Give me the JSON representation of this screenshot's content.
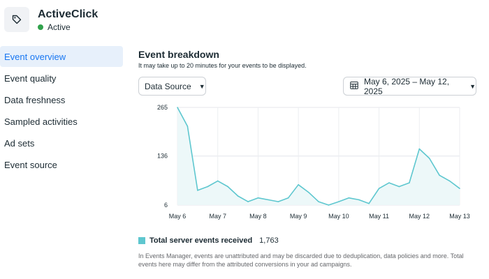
{
  "app": {
    "title": "ActiveClick",
    "status": "Active",
    "icon": "tag-icon",
    "status_color": "#31a24c"
  },
  "sidebar": {
    "items": [
      {
        "label": "Event overview",
        "active": true
      },
      {
        "label": "Event quality"
      },
      {
        "label": "Data freshness"
      },
      {
        "label": "Sampled activities"
      },
      {
        "label": "Ad sets"
      },
      {
        "label": "Event source"
      }
    ]
  },
  "main": {
    "title": "Event breakdown",
    "subtitle": "It may take up to 20 minutes for your events to be displayed.",
    "source_button": "Data Source",
    "date_range": "May 6, 2025 – May 12, 2025",
    "legend_label": "Total server events received",
    "legend_total": "1,763",
    "footnote": "In Events Manager, events are unattributed and may be discarded due to deduplication, data policies and more. Total events here may differ from the attributed conversions in your ad campaigns."
  },
  "chart_data": {
    "type": "area",
    "title": "",
    "xlabel": "",
    "ylabel": "",
    "color": "#5ec7cf",
    "fill": "#edf8f9",
    "grid": true,
    "ylim": [
      6,
      265
    ],
    "yticks": [
      265,
      136,
      6
    ],
    "xticks": [
      "May 6",
      "May 7",
      "May 8",
      "May 9",
      "May 10",
      "May 11",
      "May 12",
      "May 13"
    ],
    "x": [
      0,
      0.25,
      0.5,
      0.75,
      1,
      1.25,
      1.5,
      1.75,
      2,
      2.25,
      2.5,
      2.75,
      3,
      3.25,
      3.5,
      3.75,
      4,
      4.25,
      4.5,
      4.75,
      5,
      5.25,
      5.5,
      5.75,
      6,
      6.25,
      6.5,
      6.75,
      7
    ],
    "series": [
      {
        "values": [
          265,
          215,
          45,
          55,
          70,
          55,
          30,
          15,
          25,
          20,
          15,
          25,
          60,
          40,
          15,
          6,
          15,
          25,
          20,
          10,
          50,
          65,
          55,
          65,
          155,
          130,
          85,
          70,
          50
        ]
      }
    ]
  }
}
